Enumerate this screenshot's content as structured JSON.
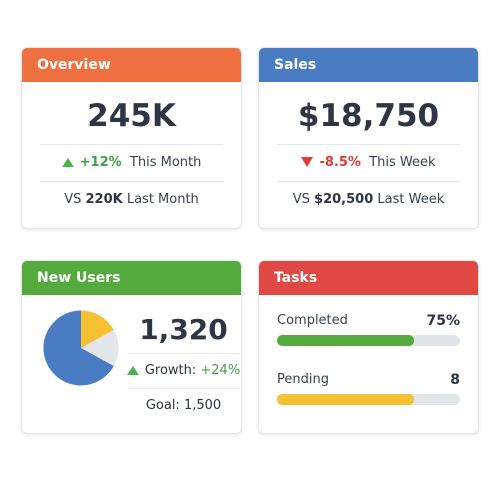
{
  "overview": {
    "title": "Overview",
    "header_color": "#ee7040",
    "value": "245K",
    "change": "+12%",
    "change_label": "This Month",
    "compare_prefix": "VS",
    "compare_value": "220K",
    "compare_label": "Last Month"
  },
  "sales": {
    "title": "Sales",
    "header_color": "#4a7cc4",
    "value": "$18,750",
    "change": "-8.5%",
    "change_label": "This Week",
    "compare_prefix": "VS",
    "compare_value": "$20,500",
    "compare_label": "Last Week"
  },
  "new_users": {
    "title": "New Users",
    "header_color": "#55aa3e",
    "value": "1,320",
    "growth_label": "Growth:",
    "growth_value": "+24%",
    "goal_label": "Goal: 1,500",
    "pie_colors": [
      "#4a7cc4",
      "#f5c132",
      "#e3e6ea"
    ]
  },
  "tasks": {
    "title": "Tasks",
    "header_color": "#e04843",
    "completed_label": "Completed",
    "completed_value": "75%",
    "completed_fraction": 0.75,
    "completed_color": "#55aa3e",
    "pending_label": "Pending",
    "pending_value": "8",
    "pending_fraction": 0.75,
    "pending_color": "#f5c132"
  }
}
